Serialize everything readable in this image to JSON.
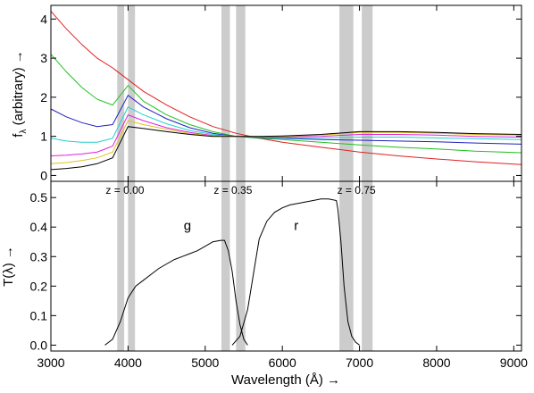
{
  "chart_data": [
    {
      "type": "line",
      "title": "",
      "xlabel": "",
      "ylabel": "f",
      "ylabel_sub": "λ",
      "ylabel_rest": " (arbitrary) →",
      "xlim": [
        3000,
        9100
      ],
      "ylim": [
        -0.15,
        4.35
      ],
      "yticks": [
        0,
        1,
        2,
        3,
        4
      ],
      "grid": false,
      "shaded_bands": [
        [
          3860,
          3950
        ],
        [
          4000,
          4090
        ],
        [
          5210,
          5320
        ],
        [
          5400,
          5520
        ],
        [
          6740,
          6920
        ],
        [
          7030,
          7170
        ]
      ],
      "series": [
        {
          "color": "#e02020",
          "x": [
            3000,
            3200,
            3400,
            3600,
            3800,
            4000,
            4200,
            4500,
            4800,
            5100,
            5400,
            5700,
            6000,
            6500,
            7000,
            7500,
            8000,
            8500,
            9100
          ],
          "y": [
            4.2,
            3.75,
            3.35,
            3.0,
            2.75,
            2.45,
            2.15,
            1.8,
            1.5,
            1.25,
            1.08,
            0.95,
            0.85,
            0.72,
            0.6,
            0.5,
            0.42,
            0.35,
            0.28
          ]
        },
        {
          "color": "#20c020",
          "x": [
            3000,
            3200,
            3400,
            3600,
            3800,
            4000,
            4200,
            4500,
            4800,
            5100,
            5400,
            5700,
            6000,
            6500,
            7000,
            7500,
            8000,
            8500,
            9100
          ],
          "y": [
            3.1,
            2.65,
            2.25,
            1.95,
            1.8,
            2.3,
            1.9,
            1.55,
            1.3,
            1.12,
            1.0,
            0.95,
            0.92,
            0.85,
            0.78,
            0.72,
            0.68,
            0.62,
            0.58
          ]
        },
        {
          "color": "#2020c0",
          "x": [
            3000,
            3200,
            3400,
            3600,
            3800,
            4000,
            4200,
            4500,
            4800,
            5100,
            5400,
            5700,
            6000,
            6500,
            7000,
            7500,
            8000,
            8500,
            9100
          ],
          "y": [
            1.7,
            1.5,
            1.35,
            1.25,
            1.3,
            2.05,
            1.75,
            1.45,
            1.22,
            1.08,
            1.0,
            0.97,
            0.95,
            0.92,
            0.9,
            0.88,
            0.86,
            0.83,
            0.8
          ]
        },
        {
          "color": "#20d0d0",
          "x": [
            3000,
            3200,
            3400,
            3600,
            3800,
            4000,
            4200,
            4500,
            4800,
            5100,
            5400,
            5700,
            6000,
            6500,
            7000,
            7500,
            8000,
            8500,
            9100
          ],
          "y": [
            0.95,
            0.88,
            0.85,
            0.85,
            0.95,
            1.75,
            1.55,
            1.32,
            1.15,
            1.05,
            1.0,
            0.98,
            0.97,
            0.96,
            0.98,
            0.98,
            0.96,
            0.94,
            0.92
          ]
        },
        {
          "color": "#e020e0",
          "x": [
            3000,
            3200,
            3400,
            3600,
            3800,
            4000,
            4200,
            4500,
            4800,
            5100,
            5400,
            5700,
            6000,
            6500,
            7000,
            7500,
            8000,
            8500,
            9100
          ],
          "y": [
            0.5,
            0.52,
            0.55,
            0.6,
            0.75,
            1.55,
            1.4,
            1.22,
            1.1,
            1.02,
            1.0,
            0.99,
            0.99,
            1.0,
            1.05,
            1.05,
            1.03,
            1.0,
            0.98
          ]
        },
        {
          "color": "#e0c020",
          "x": [
            3000,
            3200,
            3400,
            3600,
            3800,
            4000,
            4200,
            4500,
            4800,
            5100,
            5400,
            5700,
            6000,
            6500,
            7000,
            7500,
            8000,
            8500,
            9100
          ],
          "y": [
            0.3,
            0.33,
            0.38,
            0.45,
            0.6,
            1.4,
            1.3,
            1.18,
            1.07,
            1.01,
            1.0,
            1.0,
            1.0,
            1.03,
            1.1,
            1.1,
            1.08,
            1.05,
            1.03
          ]
        },
        {
          "color": "#000000",
          "x": [
            3000,
            3200,
            3400,
            3600,
            3800,
            4000,
            4200,
            4500,
            4800,
            5100,
            5400,
            5700,
            6000,
            6500,
            7000,
            7500,
            8000,
            8500,
            9100
          ],
          "y": [
            0.15,
            0.18,
            0.22,
            0.3,
            0.45,
            1.25,
            1.2,
            1.12,
            1.05,
            1.0,
            1.0,
            1.0,
            1.01,
            1.05,
            1.12,
            1.12,
            1.1,
            1.07,
            1.05
          ]
        }
      ]
    },
    {
      "type": "line",
      "title": "",
      "xlabel": "Wavelength (Å) →",
      "ylabel": "T(λ) →",
      "xlim": [
        3000,
        9100
      ],
      "ylim": [
        -0.02,
        0.555
      ],
      "xticks": [
        3000,
        4000,
        5000,
        6000,
        7000,
        8000,
        9000
      ],
      "yticks": [
        0.0,
        0.1,
        0.2,
        0.3,
        0.4,
        0.5
      ],
      "ytick_labels": [
        "0.0",
        "0.1",
        "0.2",
        "0.3",
        "0.4",
        "0.5"
      ],
      "grid": false,
      "shaded_bands": [
        [
          3860,
          3950
        ],
        [
          4000,
          4090
        ],
        [
          5210,
          5320
        ],
        [
          5400,
          5520
        ],
        [
          6740,
          6920
        ],
        [
          7030,
          7170
        ]
      ],
      "annotations": [
        {
          "text": "z = 0.00",
          "x": 3960,
          "y": 0.525
        },
        {
          "text": "z = 0.35",
          "x": 5360,
          "y": 0.525
        },
        {
          "text": "z = 0.75",
          "x": 6960,
          "y": 0.525
        }
      ],
      "filter_labels": [
        {
          "text": "g",
          "x": 4770,
          "y": 0.405
        },
        {
          "text": "r",
          "x": 6180,
          "y": 0.405
        }
      ],
      "series": [
        {
          "name": "g",
          "color": "#000000",
          "x": [
            3700,
            3800,
            3900,
            4000,
            4100,
            4200,
            4300,
            4400,
            4500,
            4600,
            4700,
            4800,
            4900,
            5000,
            5100,
            5200,
            5250,
            5300,
            5350,
            5400,
            5450,
            5500,
            5550
          ],
          "y": [
            0.0,
            0.02,
            0.08,
            0.16,
            0.2,
            0.22,
            0.24,
            0.26,
            0.275,
            0.29,
            0.3,
            0.31,
            0.32,
            0.335,
            0.35,
            0.355,
            0.355,
            0.32,
            0.25,
            0.15,
            0.07,
            0.02,
            0.0
          ]
        },
        {
          "name": "r",
          "color": "#000000",
          "x": [
            5350,
            5450,
            5550,
            5600,
            5650,
            5700,
            5800,
            5900,
            6000,
            6100,
            6200,
            6300,
            6400,
            6500,
            6600,
            6700,
            6720,
            6760,
            6800,
            6850,
            6900,
            6950,
            7000
          ],
          "y": [
            0.0,
            0.03,
            0.12,
            0.2,
            0.28,
            0.36,
            0.42,
            0.45,
            0.465,
            0.475,
            0.48,
            0.485,
            0.49,
            0.495,
            0.495,
            0.49,
            0.46,
            0.35,
            0.2,
            0.08,
            0.03,
            0.01,
            0.0
          ]
        }
      ]
    }
  ]
}
